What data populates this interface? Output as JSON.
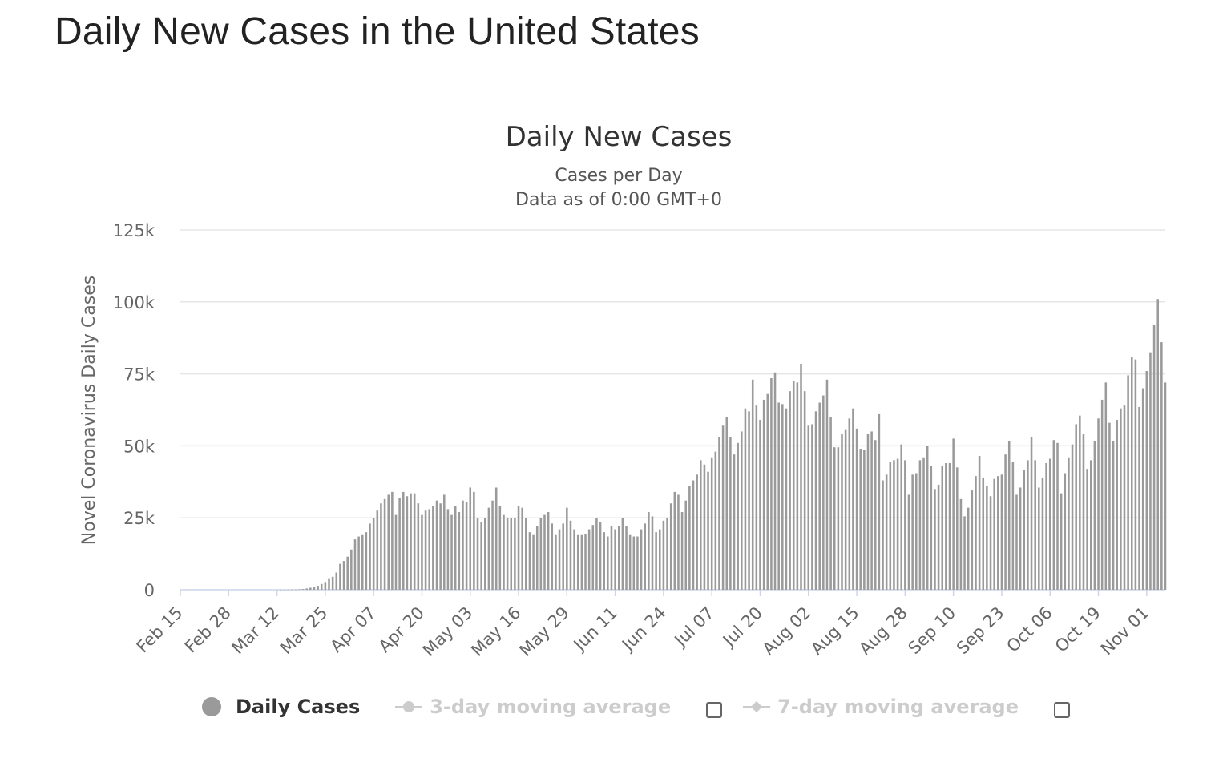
{
  "page": {
    "title": "Daily New Cases in the United States"
  },
  "colors": {
    "bar": "#9a9a9a",
    "grid": "#e6e6e6",
    "zero_line": "#ccd6eb",
    "text": "#333333",
    "axis_text": "#666666",
    "legend_hidden": "#cccccc"
  },
  "legend": {
    "items": [
      {
        "label": "Daily Cases",
        "active": true,
        "symbol": "circle-dot-icon"
      },
      {
        "label": "3-day moving average",
        "active": false,
        "symbol": "line-circle-icon",
        "has_checkbox": true
      },
      {
        "label": "7-day moving average",
        "active": false,
        "symbol": "line-diamond-icon",
        "has_checkbox": true
      }
    ]
  },
  "chart_data": {
    "type": "bar",
    "title": "Daily New Cases",
    "subtitle_lines": [
      "Cases per Day",
      "Data as of 0:00 GMT+0"
    ],
    "ylabel": "Novel Coronavirus Daily Cases",
    "xlabel": "",
    "ylim": [
      0,
      125000
    ],
    "y_ticks": [
      {
        "value": 0,
        "label": "0"
      },
      {
        "value": 25000,
        "label": "25k"
      },
      {
        "value": 50000,
        "label": "50k"
      },
      {
        "value": 75000,
        "label": "75k"
      },
      {
        "value": 100000,
        "label": "100k"
      },
      {
        "value": 125000,
        "label": "125k"
      }
    ],
    "x_tick_labels": [
      "Feb 15",
      "Feb 28",
      "Mar 12",
      "Mar 25",
      "Apr 07",
      "Apr 20",
      "May 03",
      "May 16",
      "May 29",
      "Jun 11",
      "Jun 24",
      "Jul 07",
      "Jul 20",
      "Aug 02",
      "Aug 15",
      "Aug 28",
      "Sep 10",
      "Sep 23",
      "Oct 06",
      "Oct 19",
      "Nov 01"
    ],
    "x_tick_every": 13,
    "start_date": "Feb 15",
    "grid": true,
    "series": [
      {
        "name": "Daily Cases",
        "values": [
          0,
          0,
          0,
          0,
          0,
          0,
          0,
          0,
          0,
          0,
          0,
          0,
          0,
          0,
          0,
          0,
          0,
          0,
          0,
          0,
          0,
          0,
          0,
          0,
          0,
          0,
          5,
          10,
          20,
          30,
          60,
          90,
          160,
          240,
          450,
          700,
          1100,
          1400,
          2000,
          2700,
          4000,
          4500,
          6000,
          9000,
          10000,
          11500,
          14000,
          17500,
          18500,
          19000,
          20000,
          23000,
          25000,
          27500,
          30000,
          31500,
          33000,
          34000,
          26000,
          32000,
          34000,
          32500,
          33500,
          33500,
          30000,
          26000,
          27500,
          28000,
          29000,
          31000,
          30000,
          33000,
          28000,
          26000,
          29000,
          27000,
          31000,
          30500,
          35500,
          34000,
          25000,
          23500,
          25000,
          28500,
          31000,
          35500,
          29000,
          26000,
          25000,
          25000,
          25000,
          29000,
          28500,
          25000,
          20000,
          19000,
          22000,
          25000,
          26000,
          27000,
          23000,
          19000,
          21000,
          23000,
          28500,
          24000,
          21000,
          19000,
          19000,
          19500,
          21000,
          22500,
          25000,
          23500,
          20000,
          18500,
          22000,
          21000,
          22000,
          25000,
          22000,
          19000,
          18500,
          18500,
          21000,
          23000,
          27000,
          25500,
          20000,
          21000,
          24000,
          25000,
          30000,
          34000,
          33000,
          27000,
          31000,
          36000,
          38000,
          40000,
          45000,
          43500,
          41000,
          46000,
          48000,
          53000,
          57000,
          60000,
          53000,
          47000,
          51000,
          55000,
          63000,
          62000,
          73000,
          64000,
          59000,
          66000,
          68000,
          73500,
          75500,
          65000,
          64500,
          63000,
          69000,
          72500,
          72000,
          78500,
          69000,
          57000,
          57500,
          62000,
          65000,
          67500,
          73000,
          60000,
          49500,
          49500,
          54000,
          55500,
          59500,
          63000,
          56000,
          49000,
          48500,
          54000,
          55000,
          52000,
          61000,
          38000,
          40000,
          44500,
          45000,
          45500,
          50500,
          45000,
          33000,
          40000,
          40500,
          45000,
          46000,
          50000,
          43000,
          35000,
          36500,
          43000,
          44000,
          44000,
          52500,
          42500,
          31500,
          25500,
          28500,
          34500,
          39500,
          46500,
          39000,
          36000,
          32500,
          38500,
          39500,
          40000,
          47000,
          51500,
          44500,
          33000,
          35500,
          41500,
          45000,
          53000,
          45000,
          35500,
          39000,
          44000,
          45500,
          52000,
          51000,
          33500,
          40500,
          46000,
          50500,
          57500,
          60500,
          54000,
          42000,
          45000,
          51500,
          59500,
          66000,
          72000,
          58000,
          51500,
          59000,
          63000,
          64000,
          74500,
          81000,
          80000,
          63500,
          70000,
          76000,
          82500,
          92000,
          101000,
          86000,
          72000
        ]
      }
    ]
  }
}
